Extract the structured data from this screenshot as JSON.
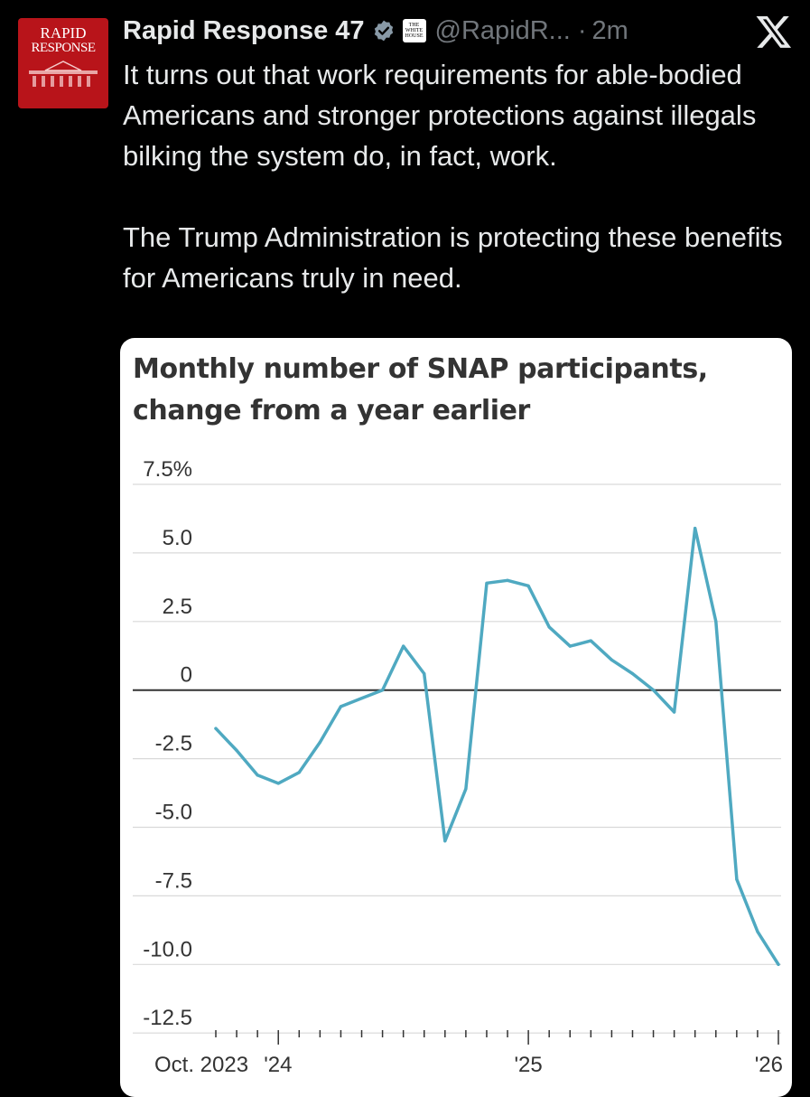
{
  "post": {
    "avatar_line1": "RAPID",
    "avatar_line2": "RESPONSE",
    "display_name": "Rapid Response 47",
    "affiliate_line1": "THE",
    "affiliate_line2": "WHITE",
    "affiliate_line3": "HOUSE",
    "handle": "@RapidR...",
    "separator": "·",
    "timestamp": "2m",
    "paragraphs": [
      "It turns out that work requirements for able-bodied Americans and stronger protections against illegals bilking the system do, in fact, work.",
      "The Trump Administration is protecting these benefits for Americans truly in need."
    ]
  },
  "icons": {
    "verified": "verified-badge-icon",
    "affiliate": "white-house-affiliate-icon",
    "brand": "x-logo-icon"
  },
  "colors": {
    "background": "#000000",
    "text": "#e7e9ea",
    "muted": "#71767b",
    "verified": "#8899a6",
    "avatar_bg": "#b8141a",
    "line": "#4fa9c1",
    "grid": "#d9d9d9",
    "zero_line": "#333333"
  },
  "chart_data": {
    "type": "line",
    "title_line1": "Monthly number of SNAP participants,",
    "title_line2": "change from a year earlier",
    "ylim": [
      -12.5,
      7.5
    ],
    "y_ticks": [
      7.5,
      5.0,
      2.5,
      0,
      -2.5,
      -5.0,
      -7.5,
      -10.0,
      -12.5
    ],
    "y_tick_labels": [
      "7.5%",
      "5.0",
      "2.5",
      "0",
      "-2.5",
      "-5.0",
      "-7.5",
      "-10.0",
      "-12.5"
    ],
    "x_tick_labels": [
      {
        "label": "Oct. 2023",
        "month_index": 0
      },
      {
        "label": "'24",
        "month_index": 3
      },
      {
        "label": "'25",
        "month_index": 15
      },
      {
        "label": "'26",
        "month_index": 27
      }
    ],
    "months": 28,
    "grid": true,
    "series": [
      {
        "values": [
          -1.4,
          -2.2,
          -3.1,
          -3.4,
          -3.0,
          -1.9,
          -0.6,
          -0.3,
          0.0,
          1.6,
          0.6,
          -5.5,
          -3.6,
          3.9,
          4.0,
          3.8,
          2.3,
          1.6,
          1.8,
          1.1,
          0.6,
          0.0,
          -0.8,
          5.9,
          2.5,
          -6.9,
          -8.8,
          -10.0
        ]
      }
    ]
  }
}
